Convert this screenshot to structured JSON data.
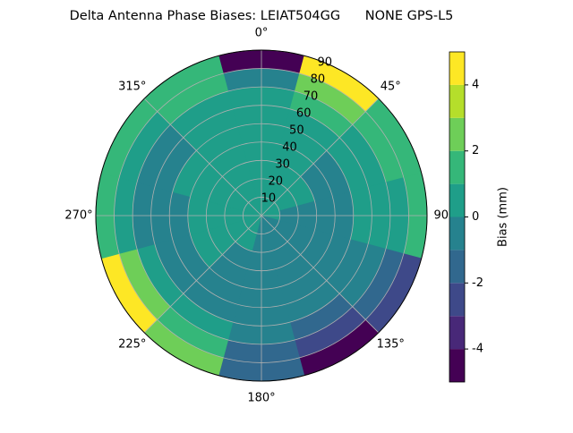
{
  "chart_data": {
    "type": "polar-contour",
    "title": "Delta Antenna Phase Biases: LEIAT504GG      NONE GPS-L5",
    "azimuths": [
      0,
      30,
      60,
      90,
      120,
      150,
      180,
      210,
      240,
      270,
      300,
      330
    ],
    "zeniths": [
      5,
      15,
      25,
      35,
      45,
      55,
      65,
      75,
      85
    ],
    "values": [
      [
        0.5,
        0.5,
        0.5,
        0.5,
        0.5,
        0.5,
        0.5,
        -0.5,
        -4.5
      ],
      [
        0.5,
        0.5,
        0.5,
        0.5,
        0.5,
        0.5,
        1.5,
        2.5,
        4.5
      ],
      [
        0.5,
        0.5,
        0.5,
        -0.5,
        -0.5,
        0.5,
        0.5,
        1.5,
        1.5
      ],
      [
        0.5,
        -0.5,
        -0.5,
        -0.5,
        -0.5,
        0.5,
        0.5,
        0.5,
        1.5
      ],
      [
        -0.5,
        -0.5,
        -0.5,
        -0.5,
        -0.5,
        -0.5,
        -0.5,
        -1.5,
        -2.5
      ],
      [
        -0.5,
        -0.5,
        -0.5,
        -0.5,
        -0.5,
        -0.5,
        -1.5,
        -2.5,
        -4.5
      ],
      [
        -0.5,
        -0.5,
        -0.5,
        -0.5,
        -0.5,
        -0.5,
        -0.5,
        -1.5,
        -1.5
      ],
      [
        0.5,
        0.5,
        -0.5,
        -0.5,
        -0.5,
        -0.5,
        0.5,
        1.5,
        2.5
      ],
      [
        0.5,
        0.5,
        0.5,
        0.5,
        -0.5,
        -0.5,
        0.5,
        2.5,
        4.5
      ],
      [
        0.5,
        0.5,
        0.5,
        0.5,
        -0.5,
        -0.5,
        -0.5,
        0.5,
        1.5
      ],
      [
        0.5,
        0.5,
        0.5,
        0.5,
        0.5,
        -0.5,
        -0.5,
        0.5,
        1.5
      ],
      [
        0.5,
        0.5,
        0.5,
        0.5,
        0.5,
        0.5,
        0.5,
        1.5,
        1.5
      ]
    ],
    "levels": [
      -5,
      -4,
      -3,
      -2,
      -1,
      0,
      1,
      2,
      3,
      4,
      5
    ],
    "colors": [
      "#440154",
      "#482878",
      "#3e4989",
      "#31688e",
      "#26828e",
      "#1f9e89",
      "#35b779",
      "#6ece58",
      "#b5de2b",
      "#fde725"
    ],
    "rlim": [
      0,
      90
    ],
    "rticks": [
      10,
      20,
      30,
      40,
      50,
      60,
      70,
      80,
      90
    ],
    "thetaticks": [
      {
        "value": 0,
        "label": "0°"
      },
      {
        "value": 45,
        "label": "45°"
      },
      {
        "value": 90,
        "label": "90°"
      },
      {
        "value": 135,
        "label": "135°"
      },
      {
        "value": 180,
        "label": "180°"
      },
      {
        "value": 225,
        "label": "225°"
      },
      {
        "value": 270,
        "label": "270°"
      },
      {
        "value": 315,
        "label": "315°"
      }
    ],
    "colorbar_label": "Bias (mm)",
    "clim": [
      -5,
      5
    ],
    "cticks": [
      -4,
      -2,
      0,
      2,
      4
    ],
    "grid": true
  }
}
